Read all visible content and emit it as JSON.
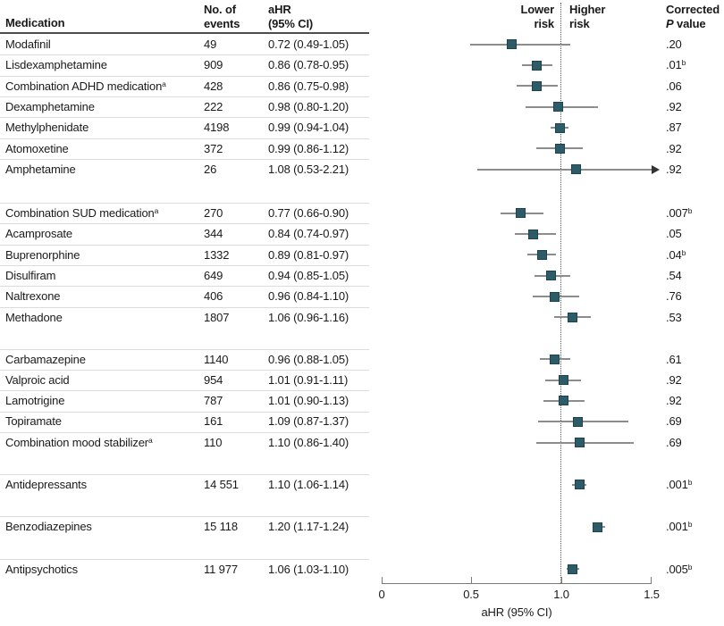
{
  "colors": {
    "text": "#1a1a1a",
    "marker_fill": "#2d5b68",
    "marker_border": "#1b4350",
    "ci_line": "#8c8c8c",
    "ref_line": "#5a5a5a",
    "row_separator": "#dcdcdc",
    "header_rule": "#4d4d4d",
    "axis": "#7a7a7a",
    "arrow": "#333333"
  },
  "table": {
    "header_medication": "Medication",
    "header_events": [
      "No. of",
      "events"
    ],
    "header_ahr": [
      "aHR",
      "(95% CI)"
    ],
    "header_p_line1": "Corrected",
    "header_p_italic": "P",
    "header_p_rest": " value"
  },
  "plot": {
    "label_lower": [
      "Lower",
      "risk"
    ],
    "label_higher": [
      "Higher",
      "risk"
    ],
    "axis_label": "aHR (95% CI)",
    "tick_labels": [
      "0",
      "0.5",
      "1.0",
      "1.5"
    ]
  },
  "chart_data": {
    "type": "forest",
    "xlabel": "aHR (95% CI)",
    "xlim": [
      0,
      1.5
    ],
    "xticks": [
      0,
      0.5,
      1.0,
      1.5
    ],
    "reference_line": 1.0,
    "columns": [
      "Medication",
      "No. of events",
      "aHR (95% CI)",
      "Corrected P value"
    ],
    "sections": [
      {
        "rows": [
          {
            "label": "Modafinil",
            "events": "49",
            "ahr_text": "0.72 (0.49-1.05)",
            "ahr": 0.72,
            "lo": 0.49,
            "hi": 1.05,
            "p": ".20"
          },
          {
            "label": "Lisdexamphetamine",
            "events": "909",
            "ahr_text": "0.86 (0.78-0.95)",
            "ahr": 0.86,
            "lo": 0.78,
            "hi": 0.95,
            "p": ".01",
            "p_sup": "b"
          },
          {
            "label": "Combination ADHD medication",
            "label_sup": "a",
            "events": "428",
            "ahr_text": "0.86 (0.75-0.98)",
            "ahr": 0.86,
            "lo": 0.75,
            "hi": 0.98,
            "p": ".06"
          },
          {
            "label": "Dexamphetamine",
            "events": "222",
            "ahr_text": "0.98 (0.80-1.20)",
            "ahr": 0.98,
            "lo": 0.8,
            "hi": 1.2,
            "p": ".92"
          },
          {
            "label": "Methylphenidate",
            "events": "4198",
            "ahr_text": "0.99 (0.94-1.04)",
            "ahr": 0.99,
            "lo": 0.94,
            "hi": 1.04,
            "p": ".87"
          },
          {
            "label": "Atomoxetine",
            "events": "372",
            "ahr_text": "0.99 (0.86-1.12)",
            "ahr": 0.99,
            "lo": 0.86,
            "hi": 1.12,
            "p": ".92"
          },
          {
            "label": "Amphetamine",
            "events": "26",
            "ahr_text": "1.08 (0.53-2.21)",
            "ahr": 1.08,
            "lo": 0.53,
            "hi": 2.21,
            "p": ".92",
            "arrow_right": true
          }
        ]
      },
      {
        "rows": [
          {
            "label": "Combination SUD medication",
            "label_sup": "a",
            "events": "270",
            "ahr_text": "0.77 (0.66-0.90)",
            "ahr": 0.77,
            "lo": 0.66,
            "hi": 0.9,
            "p": ".007",
            "p_sup": "b"
          },
          {
            "label": "Acamprosate",
            "events": "344",
            "ahr_text": "0.84 (0.74-0.97)",
            "ahr": 0.84,
            "lo": 0.74,
            "hi": 0.97,
            "p": ".05"
          },
          {
            "label": "Buprenorphine",
            "events": "1332",
            "ahr_text": "0.89 (0.81-0.97)",
            "ahr": 0.89,
            "lo": 0.81,
            "hi": 0.97,
            "p": ".04",
            "p_sup": "b"
          },
          {
            "label": "Disulfiram",
            "events": "649",
            "ahr_text": "0.94 (0.85-1.05)",
            "ahr": 0.94,
            "lo": 0.85,
            "hi": 1.05,
            "p": ".54"
          },
          {
            "label": "Naltrexone",
            "events": "406",
            "ahr_text": "0.96 (0.84-1.10)",
            "ahr": 0.96,
            "lo": 0.84,
            "hi": 1.1,
            "p": ".76"
          },
          {
            "label": "Methadone",
            "events": "1807",
            "ahr_text": "1.06 (0.96-1.16)",
            "ahr": 1.06,
            "lo": 0.96,
            "hi": 1.16,
            "p": ".53"
          }
        ]
      },
      {
        "rows": [
          {
            "label": "Carbamazepine",
            "events": "1140",
            "ahr_text": "0.96 (0.88-1.05)",
            "ahr": 0.96,
            "lo": 0.88,
            "hi": 1.05,
            "p": ".61"
          },
          {
            "label": "Valproic acid",
            "events": "954",
            "ahr_text": "1.01 (0.91-1.11)",
            "ahr": 1.01,
            "lo": 0.91,
            "hi": 1.11,
            "p": ".92"
          },
          {
            "label": "Lamotrigine",
            "events": "787",
            "ahr_text": "1.01 (0.90-1.13)",
            "ahr": 1.01,
            "lo": 0.9,
            "hi": 1.13,
            "p": ".92"
          },
          {
            "label": "Topiramate",
            "events": "161",
            "ahr_text": "1.09 (0.87-1.37)",
            "ahr": 1.09,
            "lo": 0.87,
            "hi": 1.37,
            "p": ".69"
          },
          {
            "label": "Combination mood stabilizer",
            "label_sup": "a",
            "events": "110",
            "ahr_text": "1.10 (0.86-1.40)",
            "ahr": 1.1,
            "lo": 0.86,
            "hi": 1.4,
            "p": ".69"
          }
        ]
      },
      {
        "tall": true,
        "rows": [
          {
            "label": "Antidepressants",
            "events": "14 551",
            "ahr_text": "1.10 (1.06-1.14)",
            "ahr": 1.1,
            "lo": 1.06,
            "hi": 1.14,
            "p": ".001",
            "p_sup": "b"
          },
          {
            "label": "Benzodiazepines",
            "events": "15 118",
            "ahr_text": "1.20 (1.17-1.24)",
            "ahr": 1.2,
            "lo": 1.17,
            "hi": 1.24,
            "p": ".001",
            "p_sup": "b"
          },
          {
            "label": "Antipsychotics",
            "events": "11 977",
            "ahr_text": "1.06 (1.03-1.10)",
            "ahr": 1.06,
            "lo": 1.03,
            "hi": 1.1,
            "p": ".005",
            "p_sup": "b"
          }
        ]
      }
    ]
  }
}
